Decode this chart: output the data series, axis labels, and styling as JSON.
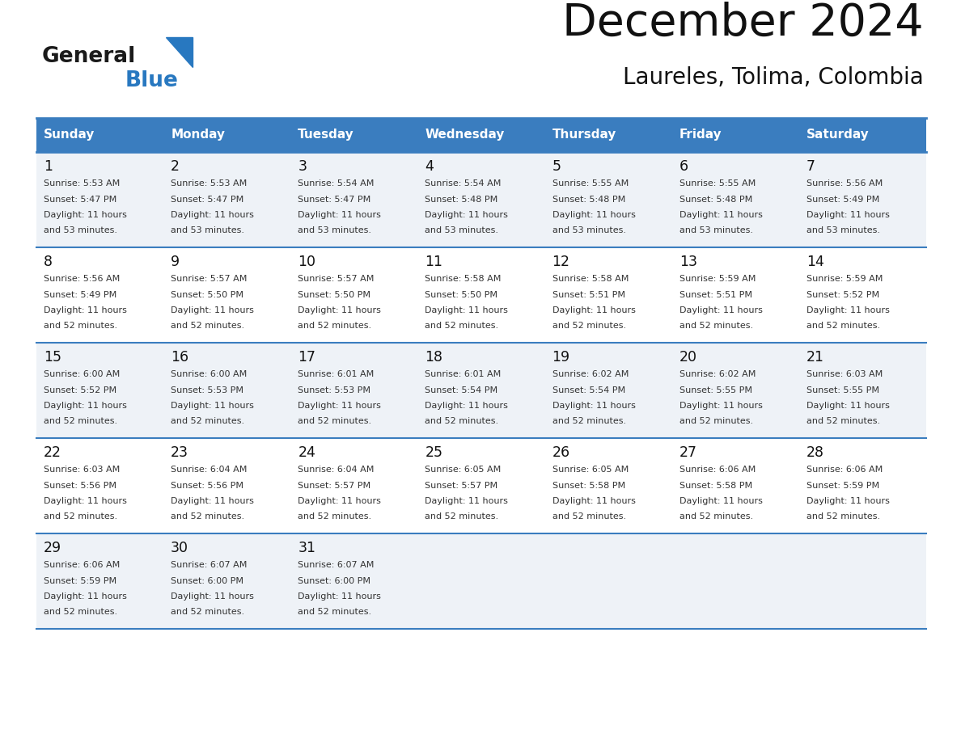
{
  "title": "December 2024",
  "subtitle": "Laureles, Tolima, Colombia",
  "header_color": "#3a7dbf",
  "header_text_color": "#ffffff",
  "line_color": "#3a7dbf",
  "odd_row_bg": "#eef2f7",
  "even_row_bg": "#ffffff",
  "days_of_week": [
    "Sunday",
    "Monday",
    "Tuesday",
    "Wednesday",
    "Thursday",
    "Friday",
    "Saturday"
  ],
  "weeks": [
    [
      {
        "day": 1,
        "sunrise": "5:53 AM",
        "sunset": "5:47 PM",
        "daylight_hours": 11,
        "daylight_minutes": 53
      },
      {
        "day": 2,
        "sunrise": "5:53 AM",
        "sunset": "5:47 PM",
        "daylight_hours": 11,
        "daylight_minutes": 53
      },
      {
        "day": 3,
        "sunrise": "5:54 AM",
        "sunset": "5:47 PM",
        "daylight_hours": 11,
        "daylight_minutes": 53
      },
      {
        "day": 4,
        "sunrise": "5:54 AM",
        "sunset": "5:48 PM",
        "daylight_hours": 11,
        "daylight_minutes": 53
      },
      {
        "day": 5,
        "sunrise": "5:55 AM",
        "sunset": "5:48 PM",
        "daylight_hours": 11,
        "daylight_minutes": 53
      },
      {
        "day": 6,
        "sunrise": "5:55 AM",
        "sunset": "5:48 PM",
        "daylight_hours": 11,
        "daylight_minutes": 53
      },
      {
        "day": 7,
        "sunrise": "5:56 AM",
        "sunset": "5:49 PM",
        "daylight_hours": 11,
        "daylight_minutes": 53
      }
    ],
    [
      {
        "day": 8,
        "sunrise": "5:56 AM",
        "sunset": "5:49 PM",
        "daylight_hours": 11,
        "daylight_minutes": 52
      },
      {
        "day": 9,
        "sunrise": "5:57 AM",
        "sunset": "5:50 PM",
        "daylight_hours": 11,
        "daylight_minutes": 52
      },
      {
        "day": 10,
        "sunrise": "5:57 AM",
        "sunset": "5:50 PM",
        "daylight_hours": 11,
        "daylight_minutes": 52
      },
      {
        "day": 11,
        "sunrise": "5:58 AM",
        "sunset": "5:50 PM",
        "daylight_hours": 11,
        "daylight_minutes": 52
      },
      {
        "day": 12,
        "sunrise": "5:58 AM",
        "sunset": "5:51 PM",
        "daylight_hours": 11,
        "daylight_minutes": 52
      },
      {
        "day": 13,
        "sunrise": "5:59 AM",
        "sunset": "5:51 PM",
        "daylight_hours": 11,
        "daylight_minutes": 52
      },
      {
        "day": 14,
        "sunrise": "5:59 AM",
        "sunset": "5:52 PM",
        "daylight_hours": 11,
        "daylight_minutes": 52
      }
    ],
    [
      {
        "day": 15,
        "sunrise": "6:00 AM",
        "sunset": "5:52 PM",
        "daylight_hours": 11,
        "daylight_minutes": 52
      },
      {
        "day": 16,
        "sunrise": "6:00 AM",
        "sunset": "5:53 PM",
        "daylight_hours": 11,
        "daylight_minutes": 52
      },
      {
        "day": 17,
        "sunrise": "6:01 AM",
        "sunset": "5:53 PM",
        "daylight_hours": 11,
        "daylight_minutes": 52
      },
      {
        "day": 18,
        "sunrise": "6:01 AM",
        "sunset": "5:54 PM",
        "daylight_hours": 11,
        "daylight_minutes": 52
      },
      {
        "day": 19,
        "sunrise": "6:02 AM",
        "sunset": "5:54 PM",
        "daylight_hours": 11,
        "daylight_minutes": 52
      },
      {
        "day": 20,
        "sunrise": "6:02 AM",
        "sunset": "5:55 PM",
        "daylight_hours": 11,
        "daylight_minutes": 52
      },
      {
        "day": 21,
        "sunrise": "6:03 AM",
        "sunset": "5:55 PM",
        "daylight_hours": 11,
        "daylight_minutes": 52
      }
    ],
    [
      {
        "day": 22,
        "sunrise": "6:03 AM",
        "sunset": "5:56 PM",
        "daylight_hours": 11,
        "daylight_minutes": 52
      },
      {
        "day": 23,
        "sunrise": "6:04 AM",
        "sunset": "5:56 PM",
        "daylight_hours": 11,
        "daylight_minutes": 52
      },
      {
        "day": 24,
        "sunrise": "6:04 AM",
        "sunset": "5:57 PM",
        "daylight_hours": 11,
        "daylight_minutes": 52
      },
      {
        "day": 25,
        "sunrise": "6:05 AM",
        "sunset": "5:57 PM",
        "daylight_hours": 11,
        "daylight_minutes": 52
      },
      {
        "day": 26,
        "sunrise": "6:05 AM",
        "sunset": "5:58 PM",
        "daylight_hours": 11,
        "daylight_minutes": 52
      },
      {
        "day": 27,
        "sunrise": "6:06 AM",
        "sunset": "5:58 PM",
        "daylight_hours": 11,
        "daylight_minutes": 52
      },
      {
        "day": 28,
        "sunrise": "6:06 AM",
        "sunset": "5:59 PM",
        "daylight_hours": 11,
        "daylight_minutes": 52
      }
    ],
    [
      {
        "day": 29,
        "sunrise": "6:06 AM",
        "sunset": "5:59 PM",
        "daylight_hours": 11,
        "daylight_minutes": 52
      },
      {
        "day": 30,
        "sunrise": "6:07 AM",
        "sunset": "6:00 PM",
        "daylight_hours": 11,
        "daylight_minutes": 52
      },
      {
        "day": 31,
        "sunrise": "6:07 AM",
        "sunset": "6:00 PM",
        "daylight_hours": 11,
        "daylight_minutes": 52
      },
      null,
      null,
      null,
      null
    ]
  ],
  "general_color": "#1a1a1a",
  "blue_color": "#2878c0",
  "fig_width": 11.88,
  "fig_height": 9.18,
  "dpi": 100
}
